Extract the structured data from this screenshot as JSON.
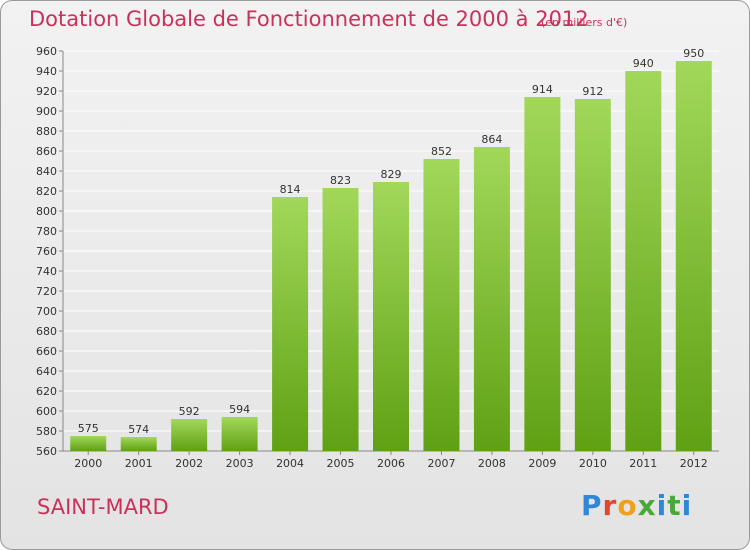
{
  "header": {
    "title": "Dotation Globale de Fonctionnement de 2000 à 2012",
    "unit": "(en milliers d'€)"
  },
  "footer": {
    "commune": "SAINT-MARD",
    "logo": "Proxiti"
  },
  "colors": {
    "title": "#c8325a",
    "bar_light": "#a2d85a",
    "bar_dark": "#5fa114",
    "grid": "#ffffff",
    "axis": "#888888"
  },
  "chart_data": {
    "type": "bar",
    "title": "Dotation Globale de Fonctionnement de 2000 à 2012",
    "subtitle": "(en milliers d'€)",
    "categories": [
      "2000",
      "2001",
      "2002",
      "2003",
      "2004",
      "2005",
      "2006",
      "2007",
      "2008",
      "2009",
      "2010",
      "2011",
      "2012"
    ],
    "values": [
      575,
      574,
      592,
      594,
      814,
      823,
      829,
      852,
      864,
      914,
      912,
      940,
      950
    ],
    "ylim": [
      560,
      960
    ],
    "yticks": [
      560,
      580,
      600,
      620,
      640,
      660,
      680,
      700,
      720,
      740,
      760,
      780,
      800,
      820,
      840,
      860,
      880,
      900,
      920,
      940,
      960
    ],
    "grid": true,
    "xlabel": "",
    "ylabel": ""
  }
}
